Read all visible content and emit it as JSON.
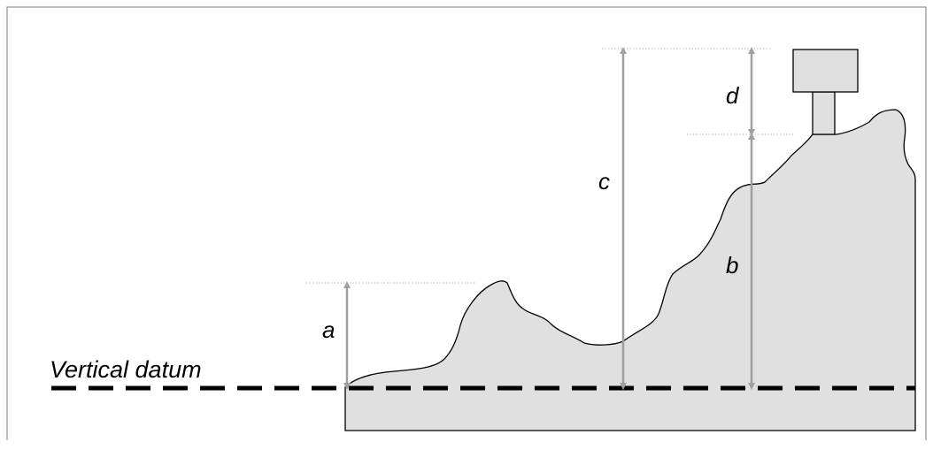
{
  "labels": {
    "datum": "Vertical datum",
    "a": "a",
    "b": "b",
    "c": "c",
    "d": "d"
  },
  "colors": {
    "terrain_fill": "#e0e0e0",
    "outline": "#000000",
    "arrow": "#a0a0a0",
    "guide": "#b4b4b4",
    "datum_line": "#000000"
  }
}
